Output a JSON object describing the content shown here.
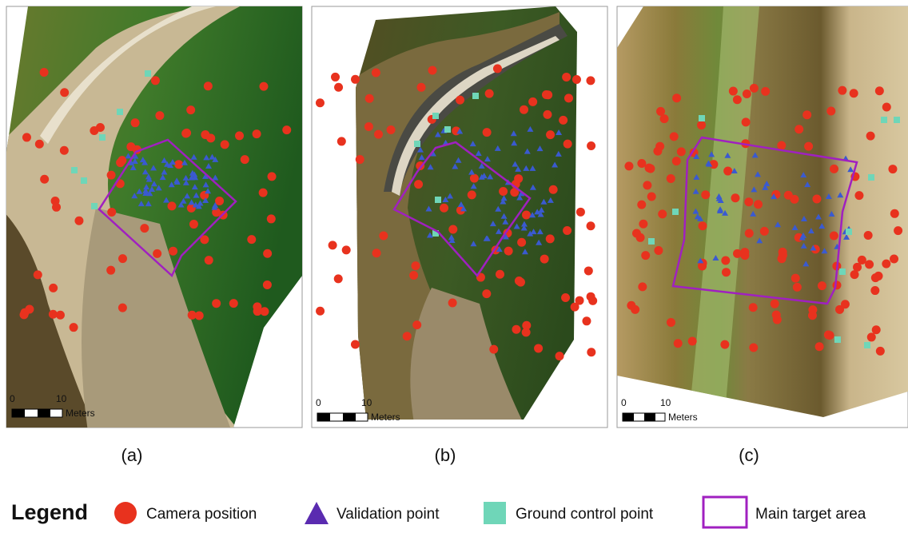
{
  "panels": [
    {
      "label": "(a)",
      "scale": {
        "start": "0",
        "end": "10",
        "unit": "Meters"
      }
    },
    {
      "label": "(b)",
      "scale": {
        "start": "0",
        "end": "10",
        "unit": "Meters"
      }
    },
    {
      "label": "(c)",
      "scale": {
        "start": "0",
        "end": "10",
        "unit": "Meters"
      }
    }
  ],
  "legend": {
    "title": "Legend",
    "items": [
      "Camera position",
      "Validation point",
      "Ground control point",
      "Main target area"
    ]
  }
}
